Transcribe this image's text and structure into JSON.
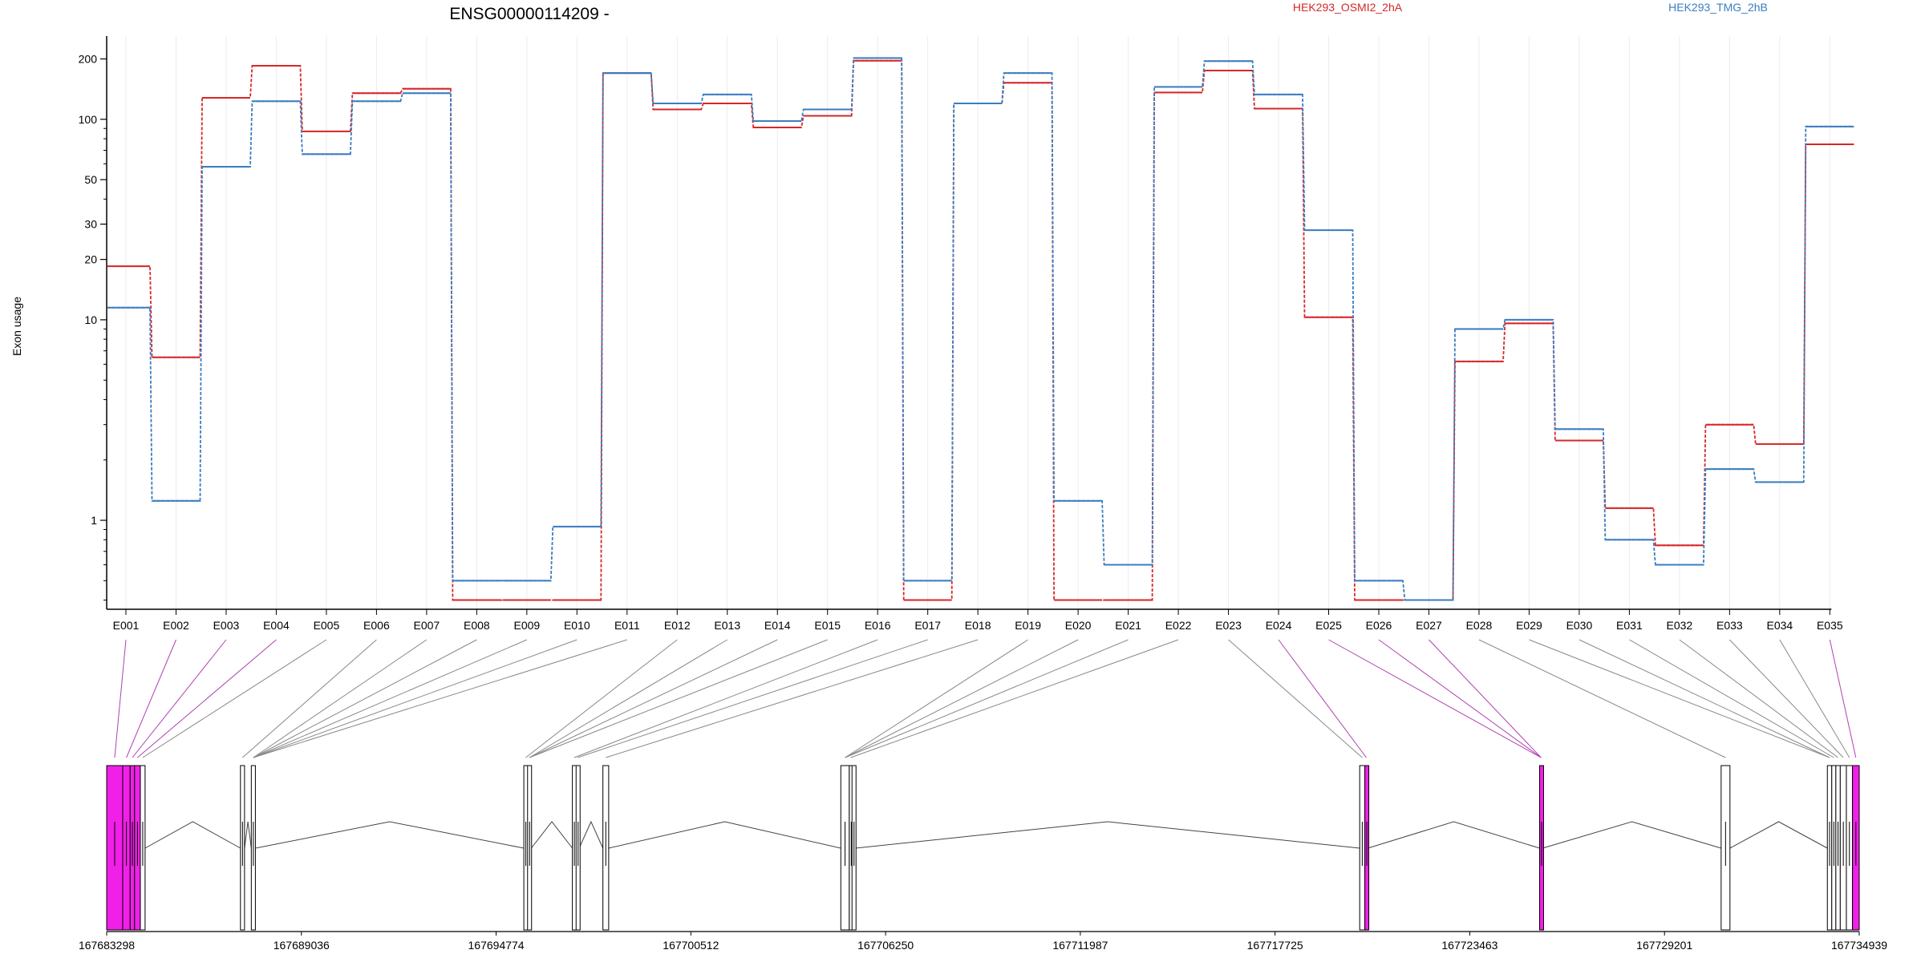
{
  "chart_data": {
    "type": "line",
    "title": "ENSG00000114209 -",
    "ylabel": "Exon usage",
    "yscale": "log",
    "ylim": [
      0.36,
      260
    ],
    "yticks": [
      1,
      10,
      20,
      30,
      50,
      100,
      200
    ],
    "ytick_labels": [
      "1",
      "10",
      "20",
      "30",
      "50",
      "100",
      "200"
    ],
    "grid": "vertical",
    "legend_placement": "top-right",
    "categories": [
      "E001",
      "E002",
      "E003",
      "E004",
      "E005",
      "E006",
      "E007",
      "E008",
      "E009",
      "E010",
      "E011",
      "E012",
      "E013",
      "E014",
      "E015",
      "E016",
      "E017",
      "E018",
      "E019",
      "E020",
      "E021",
      "E022",
      "E023",
      "E024",
      "E025",
      "E026",
      "E027",
      "E028",
      "E029",
      "E030",
      "E031",
      "E032",
      "E033",
      "E034",
      "E035"
    ],
    "series": [
      {
        "name": "HEK293_OSMI2_2hA",
        "color": "#d62728",
        "values": [
          18.5,
          6.5,
          128,
          185,
          87,
          135,
          142,
          0.4,
          0.4,
          0.4,
          170,
          112,
          120,
          91,
          104,
          196,
          0.4,
          120,
          152,
          0.4,
          0.4,
          136,
          175,
          113,
          10.3,
          0.4,
          0.4,
          6.2,
          9.6,
          2.5,
          1.15,
          0.75,
          3.0,
          2.4,
          75
        ]
      },
      {
        "name": "HEK293_TMG_2hB",
        "color": "#3a7dc0",
        "values": [
          11.5,
          1.25,
          58,
          123,
          67,
          123,
          135,
          0.5,
          0.5,
          0.93,
          170,
          120,
          133,
          98,
          112,
          202,
          0.5,
          120,
          170,
          1.25,
          0.6,
          145,
          195,
          133,
          28,
          0.5,
          0.4,
          9.0,
          10.0,
          2.85,
          0.8,
          0.6,
          1.8,
          1.55,
          92
        ]
      }
    ],
    "genomic_axis": {
      "tick_labels": [
        "167683298",
        "167689036",
        "167694774",
        "167700512",
        "167706250",
        "167711987",
        "167717725",
        "167723463",
        "167729201",
        "167734939"
      ],
      "start": 167683298,
      "end": 167734939,
      "exons": [
        {
          "id": "E001",
          "start": 167683298,
          "end": 167683770,
          "highlight": true
        },
        {
          "id": "E002",
          "start": 167683770,
          "end": 167683990,
          "highlight": true
        },
        {
          "id": "E003",
          "start": 167683990,
          "end": 167684120,
          "highlight": true
        },
        {
          "id": "E004",
          "start": 167684120,
          "end": 167684290,
          "highlight": true
        },
        {
          "id": "E005",
          "start": 167684290,
          "end": 167684430,
          "highlight": false
        },
        {
          "id": "E006",
          "start": 167687240,
          "end": 167687360,
          "highlight": false
        },
        {
          "id": "E007",
          "start": 167687560,
          "end": 167687680,
          "highlight": false
        },
        {
          "id": "E008",
          "start": 167695590,
          "end": 167695700,
          "highlight": false
        },
        {
          "id": "E009",
          "start": 167695700,
          "end": 167695810,
          "highlight": false
        },
        {
          "id": "E010",
          "start": 167697020,
          "end": 167697130,
          "highlight": false
        },
        {
          "id": "E011",
          "start": 167697130,
          "end": 167697220,
          "highlight": false
        },
        {
          "id": "E012",
          "start": 167697920,
          "end": 167698090,
          "highlight": false
        },
        {
          "id": "E013",
          "start": 167704930,
          "end": 167705180,
          "highlight": false
        },
        {
          "id": "E014",
          "start": 167705180,
          "end": 167705260,
          "highlight": false
        },
        {
          "id": "E015",
          "start": 167705260,
          "end": 167705360,
          "highlight": false
        },
        {
          "id": "E016",
          "start": 167720220,
          "end": 167720370,
          "highlight": false
        },
        {
          "id": "E017",
          "start": 167720370,
          "end": 167720460,
          "highlight": true
        },
        {
          "id": "E018",
          "start": 167725520,
          "end": 167725610,
          "highlight": true
        },
        {
          "id": "E019",
          "start": 167730870,
          "end": 167731130,
          "highlight": false
        },
        {
          "id": "E020",
          "start": 167734000,
          "end": 167734130,
          "highlight": false
        },
        {
          "id": "E021",
          "start": 167734130,
          "end": 167734250,
          "highlight": false
        },
        {
          "id": "E022",
          "start": 167734250,
          "end": 167734380,
          "highlight": false
        },
        {
          "id": "E023",
          "start": 167734380,
          "end": 167734560,
          "highlight": false
        },
        {
          "id": "E024",
          "start": 167734560,
          "end": 167734740,
          "highlight": false
        },
        {
          "id": "E025",
          "start": 167734740,
          "end": 167734939,
          "highlight": true
        }
      ],
      "exon_map": [
        0,
        1,
        2,
        3,
        4,
        5,
        6,
        6,
        6,
        6,
        6,
        7,
        8,
        8,
        8,
        9,
        10,
        11,
        12,
        12,
        12,
        13,
        15,
        16,
        17,
        17,
        17,
        18,
        19,
        19,
        20,
        21,
        22,
        23,
        24
      ]
    }
  }
}
